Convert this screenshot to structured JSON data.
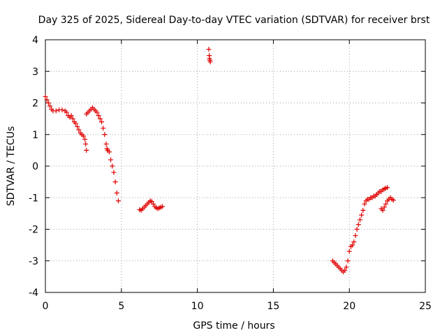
{
  "chart_data": {
    "type": "scatter",
    "title": "Day 325 of 2025, Sidereal Day-to-day VTEC variation (SDTVAR) for receiver brst",
    "xlabel": "GPS time / hours",
    "ylabel": "SDTVAR / TECUs",
    "xlim": [
      0,
      25
    ],
    "ylim": [
      -4,
      4
    ],
    "xticks": [
      0,
      5,
      10,
      15,
      20,
      25
    ],
    "yticks": [
      -4,
      -3,
      -2,
      -1,
      0,
      1,
      2,
      3,
      4
    ],
    "grid": true,
    "marker": "plus",
    "color": "#e00000",
    "series": [
      {
        "name": "segment-1",
        "x": [
          0.0,
          0.1,
          0.2,
          0.3,
          0.4,
          0.5,
          0.7,
          0.9,
          1.1,
          1.3,
          1.4,
          1.5,
          1.6,
          1.7,
          1.8,
          1.9,
          2.0,
          2.1,
          2.2,
          2.3,
          2.4,
          2.5,
          2.6,
          2.65,
          2.7
        ],
        "y": [
          2.2,
          2.1,
          2.0,
          1.9,
          1.8,
          1.75,
          1.75,
          1.78,
          1.78,
          1.75,
          1.7,
          1.6,
          1.55,
          1.6,
          1.5,
          1.4,
          1.35,
          1.25,
          1.15,
          1.05,
          1.0,
          0.95,
          0.85,
          0.7,
          0.5
        ]
      },
      {
        "name": "segment-2",
        "x": [
          2.7,
          2.8,
          2.9,
          3.0,
          3.1,
          3.2,
          3.3,
          3.4,
          3.5,
          3.6,
          3.7,
          3.8,
          3.9,
          4.0,
          4.05,
          4.1,
          4.2,
          4.3,
          4.4,
          4.5,
          4.6,
          4.7,
          4.8
        ],
        "y": [
          1.65,
          1.7,
          1.75,
          1.8,
          1.85,
          1.8,
          1.75,
          1.7,
          1.6,
          1.5,
          1.4,
          1.2,
          1.0,
          0.7,
          0.55,
          0.5,
          0.45,
          0.2,
          0.0,
          -0.2,
          -0.5,
          -0.85,
          -1.1
        ]
      },
      {
        "name": "segment-3",
        "x": [
          6.2,
          6.3,
          6.4,
          6.5,
          6.6,
          6.7,
          6.8,
          6.9,
          7.0,
          7.1,
          7.2,
          7.3,
          7.4,
          7.5,
          7.6,
          7.7
        ],
        "y": [
          -1.38,
          -1.4,
          -1.35,
          -1.3,
          -1.25,
          -1.2,
          -1.15,
          -1.1,
          -1.12,
          -1.2,
          -1.28,
          -1.32,
          -1.35,
          -1.32,
          -1.3,
          -1.28
        ]
      },
      {
        "name": "segment-4",
        "x": [
          10.75,
          10.78,
          10.8,
          10.82,
          10.85
        ],
        "y": [
          3.7,
          3.5,
          3.4,
          3.35,
          3.3
        ]
      },
      {
        "name": "segment-5",
        "x": [
          18.9,
          19.0,
          19.1,
          19.2,
          19.3,
          19.4,
          19.5,
          19.6,
          19.7,
          19.8,
          19.9,
          20.0,
          20.1,
          20.2,
          20.3,
          20.4,
          20.5,
          20.6,
          20.7,
          20.8,
          20.9,
          21.0,
          21.1,
          21.2,
          21.3,
          21.4,
          21.5,
          21.6,
          21.7,
          21.8,
          21.9,
          22.0,
          22.1,
          22.2,
          22.3,
          22.4,
          22.5
        ],
        "y": [
          -3.0,
          -3.05,
          -3.1,
          -3.15,
          -3.2,
          -3.25,
          -3.3,
          -3.35,
          -3.3,
          -3.2,
          -3.0,
          -2.7,
          -2.55,
          -2.5,
          -2.4,
          -2.2,
          -2.0,
          -1.85,
          -1.7,
          -1.55,
          -1.4,
          -1.2,
          -1.1,
          -1.05,
          -1.05,
          -1.0,
          -1.0,
          -0.95,
          -0.95,
          -0.9,
          -0.85,
          -0.8,
          -0.8,
          -0.75,
          -0.72,
          -0.7,
          -0.68
        ]
      },
      {
        "name": "segment-6",
        "x": [
          22.1,
          22.2,
          22.3,
          22.4,
          22.5,
          22.6,
          22.7,
          22.8,
          22.9
        ],
        "y": [
          -1.35,
          -1.4,
          -1.3,
          -1.2,
          -1.1,
          -1.05,
          -1.0,
          -1.05,
          -1.08
        ]
      }
    ]
  }
}
